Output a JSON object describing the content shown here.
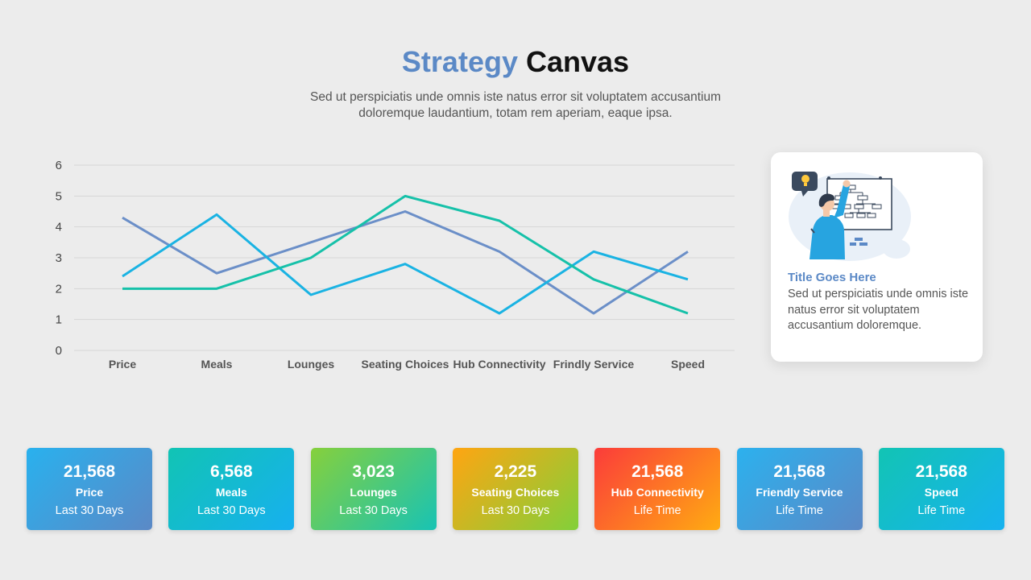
{
  "header": {
    "title_accent": "Strategy",
    "title_main": "Canvas",
    "subtitle_line1": "Sed ut perspiciatis unde omnis iste natus error sit voluptatem accusantium",
    "subtitle_line2": "doloremque laudantium, totam rem aperiam, eaque ipsa."
  },
  "chart_data": {
    "type": "line",
    "categories": [
      "Price",
      "Meals",
      "Lounges",
      "Seating Choices",
      "Hub Connectivity",
      "Frindly Service",
      "Speed"
    ],
    "ylim": [
      0,
      6
    ],
    "yticks": [
      0,
      1,
      2,
      3,
      4,
      5,
      6
    ],
    "grid": true,
    "series": [
      {
        "color": "#6b8fc8",
        "values": [
          4.3,
          2.5,
          3.5,
          4.5,
          3.2,
          1.2,
          3.2
        ]
      },
      {
        "color": "#1ab3e3",
        "values": [
          2.4,
          4.4,
          1.8,
          2.8,
          1.2,
          3.2,
          2.3
        ]
      },
      {
        "color": "#16c1a9",
        "values": [
          2.0,
          2.0,
          3.0,
          5.0,
          4.2,
          2.3,
          1.2
        ]
      }
    ]
  },
  "card": {
    "title": "Title Goes Here",
    "text": "Sed ut perspiciatis unde omnis iste natus error sit voluptatem accusantium doloremque."
  },
  "stats": [
    {
      "value": "21,568",
      "label": "Price",
      "period": "Last 30 Days",
      "gradient": [
        "#29b1ee",
        "#5b89c6"
      ]
    },
    {
      "value": "6,568",
      "label": "Meals",
      "period": "Last 30 Days",
      "gradient": [
        "#11c4b4",
        "#17b0ef"
      ]
    },
    {
      "value": "3,023",
      "label": "Lounges",
      "period": "Last 30 Days",
      "gradient": [
        "#86d03c",
        "#18c3b4"
      ]
    },
    {
      "value": "2,225",
      "label": "Seating Choices",
      "period": "Last 30 Days",
      "gradient": [
        "#ffa512",
        "#82d03a"
      ]
    },
    {
      "value": "21,568",
      "label": "Hub Connectivity",
      "period": "Life Time",
      "gradient": [
        "#fb3c3a",
        "#ffab12"
      ]
    },
    {
      "value": "21,568",
      "label": "Friendly Service",
      "period": "Life Time",
      "gradient": [
        "#2cb1ee",
        "#5b89c6"
      ]
    },
    {
      "value": "21,568",
      "label": "Speed",
      "period": "Life Time",
      "gradient": [
        "#12c4b4",
        "#17b2ef"
      ]
    }
  ]
}
